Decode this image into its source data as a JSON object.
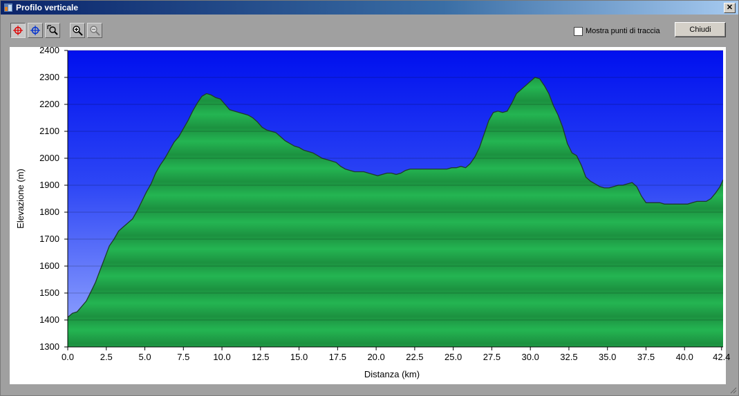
{
  "window": {
    "title": "Profilo verticale",
    "close_symbol": "✕"
  },
  "toolbar": {
    "tools": [
      {
        "name": "red-crosshair-icon",
        "active": true
      },
      {
        "name": "blue-crosshair-icon",
        "active": false
      },
      {
        "name": "zoom-region-icon",
        "active": false
      },
      {
        "name": "zoom-in-icon",
        "active": false
      },
      {
        "name": "zoom-out-icon",
        "active": false
      }
    ],
    "show_points_label": "Mostra punti di traccia",
    "show_points_checked": false,
    "close_label": "Chiudi"
  },
  "chart_data": {
    "type": "area",
    "title": "",
    "xlabel": "Distanza    (km)",
    "ylabel": "Elevazione (m)",
    "xlim": [
      0,
      42.5
    ],
    "ylim": [
      1300,
      2400
    ],
    "x_ticks": [
      "0.0",
      "2.5",
      "5.0",
      "7.5",
      "10.0",
      "12.5",
      "15.0",
      "17.5",
      "20.0",
      "22.5",
      "25.0",
      "27.5",
      "30.0",
      "32.5",
      "35.0",
      "37.5",
      "40.0",
      "42.4"
    ],
    "y_ticks": [
      "1300",
      "1400",
      "1500",
      "1600",
      "1700",
      "1800",
      "1900",
      "2000",
      "2100",
      "2200",
      "2300",
      "2400"
    ],
    "colors": {
      "sky_top": "#0010ee",
      "sky_bottom": "#8aa0ff",
      "fill": "#1fa84a",
      "fill_dark": "#178a3a",
      "line": "#1f3a2a"
    },
    "series": [
      {
        "x": [
          0,
          0.3,
          0.6,
          0.9,
          1.2,
          1.5,
          1.8,
          2.1,
          2.4,
          2.7,
          3.0,
          3.3,
          3.6,
          3.9,
          4.2,
          4.5,
          4.8,
          5.1,
          5.4,
          5.7,
          6.0,
          6.3,
          6.6,
          6.9,
          7.2,
          7.5,
          7.8,
          8.1,
          8.4,
          8.7,
          9.0,
          9.3,
          9.6,
          9.9,
          10.2,
          10.5,
          10.8,
          11.1,
          11.4,
          11.7,
          12.0,
          12.3,
          12.6,
          12.9,
          13.2,
          13.5,
          13.8,
          14.1,
          14.4,
          14.7,
          15.0,
          15.3,
          15.6,
          15.9,
          16.2,
          16.5,
          16.8,
          17.1,
          17.4,
          17.7,
          18.0,
          18.3,
          18.6,
          18.9,
          19.2,
          19.5,
          19.8,
          20.1,
          20.4,
          20.7,
          21.0,
          21.3,
          21.6,
          21.9,
          22.2,
          22.5,
          22.8,
          23.1,
          23.4,
          23.7,
          24.0,
          24.3,
          24.6,
          24.9,
          25.2,
          25.5,
          25.8,
          26.1,
          26.4,
          26.7,
          27.0,
          27.3,
          27.6,
          27.9,
          28.2,
          28.5,
          28.8,
          29.1,
          29.4,
          29.7,
          30.0,
          30.3,
          30.6,
          30.9,
          31.2,
          31.5,
          31.8,
          32.1,
          32.4,
          32.7,
          33.0,
          33.3,
          33.6,
          33.9,
          34.2,
          34.5,
          34.8,
          35.1,
          35.4,
          35.7,
          36.0,
          36.3,
          36.6,
          36.9,
          37.2,
          37.5,
          37.8,
          38.1,
          38.4,
          38.7,
          39.0,
          39.3,
          39.6,
          39.9,
          40.2,
          40.5,
          40.8,
          41.1,
          41.4,
          41.7,
          42.0,
          42.3,
          42.5
        ],
        "values": [
          1410,
          1425,
          1430,
          1450,
          1470,
          1505,
          1540,
          1585,
          1630,
          1675,
          1700,
          1730,
          1745,
          1760,
          1775,
          1805,
          1840,
          1875,
          1905,
          1945,
          1975,
          2000,
          2030,
          2060,
          2080,
          2110,
          2140,
          2175,
          2205,
          2230,
          2240,
          2235,
          2225,
          2220,
          2200,
          2180,
          2175,
          2170,
          2165,
          2160,
          2150,
          2135,
          2115,
          2105,
          2100,
          2095,
          2080,
          2065,
          2055,
          2045,
          2040,
          2030,
          2025,
          2020,
          2010,
          2000,
          1995,
          1990,
          1985,
          1970,
          1960,
          1955,
          1950,
          1950,
          1950,
          1945,
          1940,
          1935,
          1940,
          1945,
          1945,
          1940,
          1945,
          1955,
          1960,
          1960,
          1960,
          1960,
          1960,
          1960,
          1960,
          1960,
          1960,
          1965,
          1965,
          1970,
          1965,
          1980,
          2005,
          2040,
          2090,
          2140,
          2170,
          2175,
          2170,
          2175,
          2205,
          2240,
          2255,
          2270,
          2285,
          2300,
          2295,
          2270,
          2240,
          2195,
          2160,
          2115,
          2055,
          2020,
          2010,
          1975,
          1930,
          1915,
          1905,
          1895,
          1890,
          1890,
          1895,
          1900,
          1900,
          1905,
          1910,
          1895,
          1860,
          1835,
          1835,
          1835,
          1835,
          1830,
          1830,
          1830,
          1830,
          1830,
          1830,
          1835,
          1840,
          1840,
          1840,
          1850,
          1870,
          1895,
          1920
        ]
      }
    ],
    "grid": true
  }
}
